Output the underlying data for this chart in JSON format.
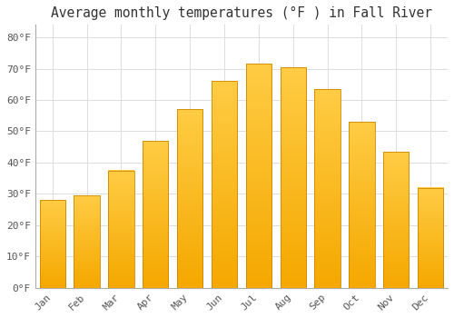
{
  "title": "Average monthly temperatures (°F ) in Fall River",
  "months": [
    "Jan",
    "Feb",
    "Mar",
    "Apr",
    "May",
    "Jun",
    "Jul",
    "Aug",
    "Sep",
    "Oct",
    "Nov",
    "Dec"
  ],
  "values": [
    28,
    29.5,
    37.5,
    47,
    57,
    66,
    71.5,
    70.5,
    63.5,
    53,
    43.5,
    32
  ],
  "bar_color_bottom": "#F5A800",
  "bar_color_top": "#FFCC44",
  "bar_edge_color": "#CC8800",
  "background_color": "#FFFFFF",
  "plot_bg_color": "#FFFFFF",
  "grid_color": "#DDDDDD",
  "text_color": "#555555",
  "title_color": "#333333",
  "ylim": [
    0,
    84
  ],
  "yticks": [
    0,
    10,
    20,
    30,
    40,
    50,
    60,
    70,
    80
  ],
  "ytick_labels": [
    "0°F",
    "10°F",
    "20°F",
    "30°F",
    "40°F",
    "50°F",
    "60°F",
    "70°F",
    "80°F"
  ],
  "title_fontsize": 10.5,
  "tick_fontsize": 8,
  "font_family": "monospace"
}
